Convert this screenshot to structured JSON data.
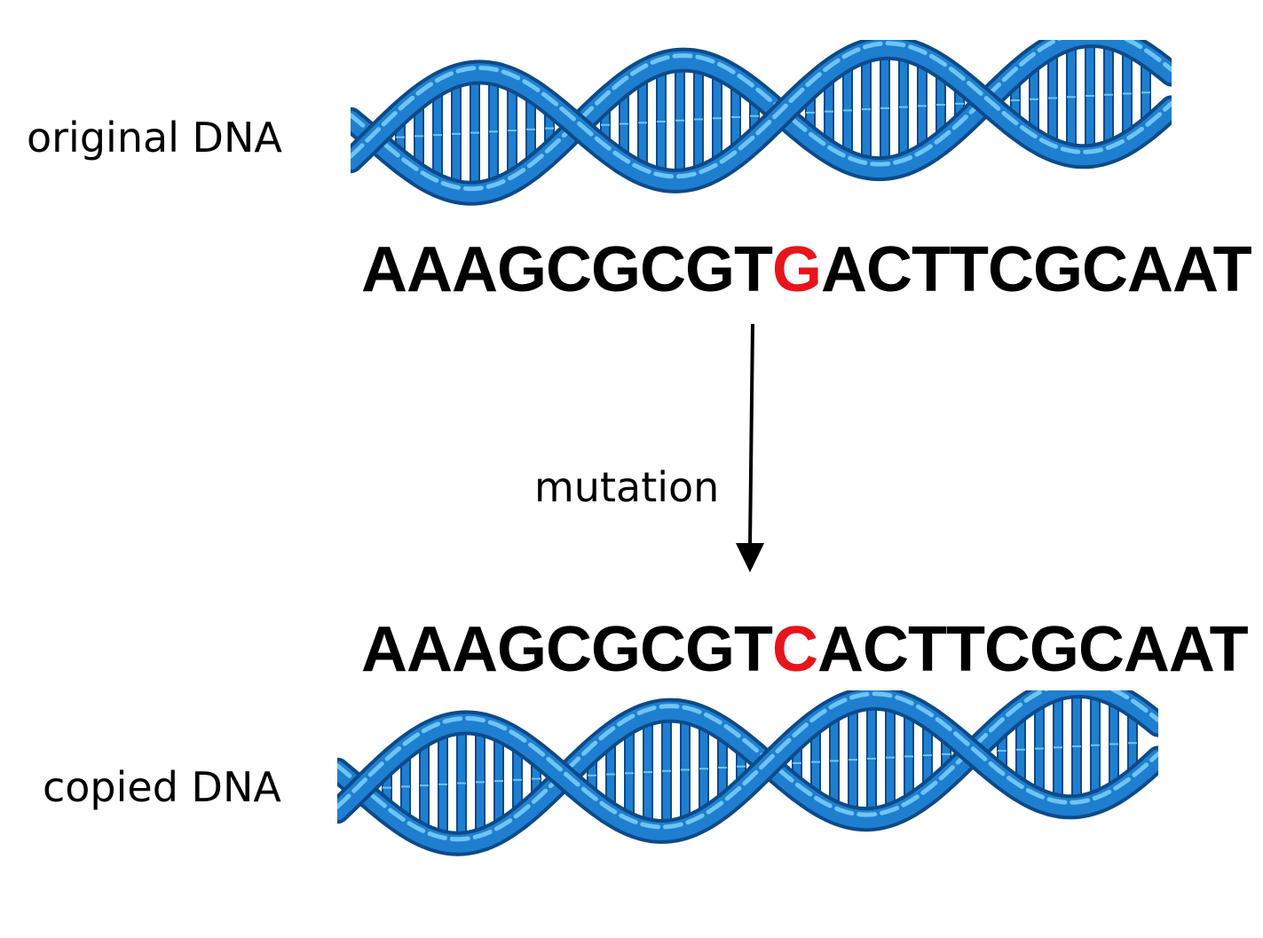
{
  "labels": {
    "original": "original DNA",
    "copied": "copied DNA",
    "mutation": "mutation"
  },
  "original_sequence": {
    "before": "AAAGCGCGT",
    "mutated_base": "G",
    "after": "ACTTCGCAAT"
  },
  "copied_sequence": {
    "before": "AAAGCGCGT",
    "mutated_base": "C",
    "after": "ACTTCGCAAT"
  },
  "colors": {
    "helix_dark": "#0d4a8a",
    "helix_mid": "#1e7fd0",
    "helix_light": "#6ec4f5",
    "mutation_highlight": "#e8141b",
    "text": "#000000"
  },
  "icons": {
    "helix": "dna-double-helix-icon",
    "arrow": "arrow-down-icon"
  }
}
